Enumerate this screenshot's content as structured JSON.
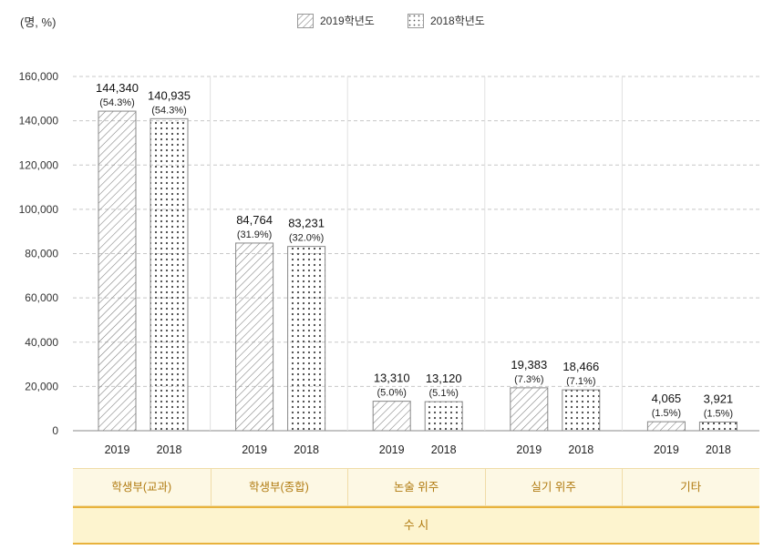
{
  "unit_label": "(명, %)",
  "legend": [
    {
      "label": "2019학년도",
      "pattern": "hatch"
    },
    {
      "label": "2018학년도",
      "pattern": "dots"
    }
  ],
  "group_label": "수 시",
  "colors": {
    "accent": "#e8b23c",
    "category_text": "#b07a10",
    "category_bg": "#fdf8e4",
    "group_bg": "#fdf4cf"
  },
  "chart_data": {
    "type": "bar",
    "categories": [
      "학생부(교과)",
      "학생부(종합)",
      "논술 위주",
      "실기 위주",
      "기타"
    ],
    "series": [
      {
        "name": "2019학년도",
        "x_label": "2019",
        "values": [
          144340,
          84764,
          13310,
          19383,
          4065
        ],
        "value_labels": [
          "144,340",
          "84,764",
          "13,310",
          "19,383",
          "4,065"
        ],
        "percent_labels": [
          "(54.3%)",
          "(31.9%)",
          "(5.0%)",
          "(7.3%)",
          "(1.5%)"
        ]
      },
      {
        "name": "2018학년도",
        "x_label": "2018",
        "values": [
          140935,
          83231,
          13120,
          18466,
          3921
        ],
        "value_labels": [
          "140,935",
          "83,231",
          "13,120",
          "18,466",
          "3,921"
        ],
        "percent_labels": [
          "(54.3%)",
          "(32.0%)",
          "(5.1%)",
          "(7.1%)",
          "(1.5%)"
        ]
      }
    ],
    "ylim": [
      0,
      160000
    ],
    "yticks": [
      "0",
      "20,000",
      "40,000",
      "60,000",
      "80,000",
      "100,000",
      "120,000",
      "140,000",
      "160,000"
    ],
    "grid": true,
    "legend_position": "top-center"
  }
}
